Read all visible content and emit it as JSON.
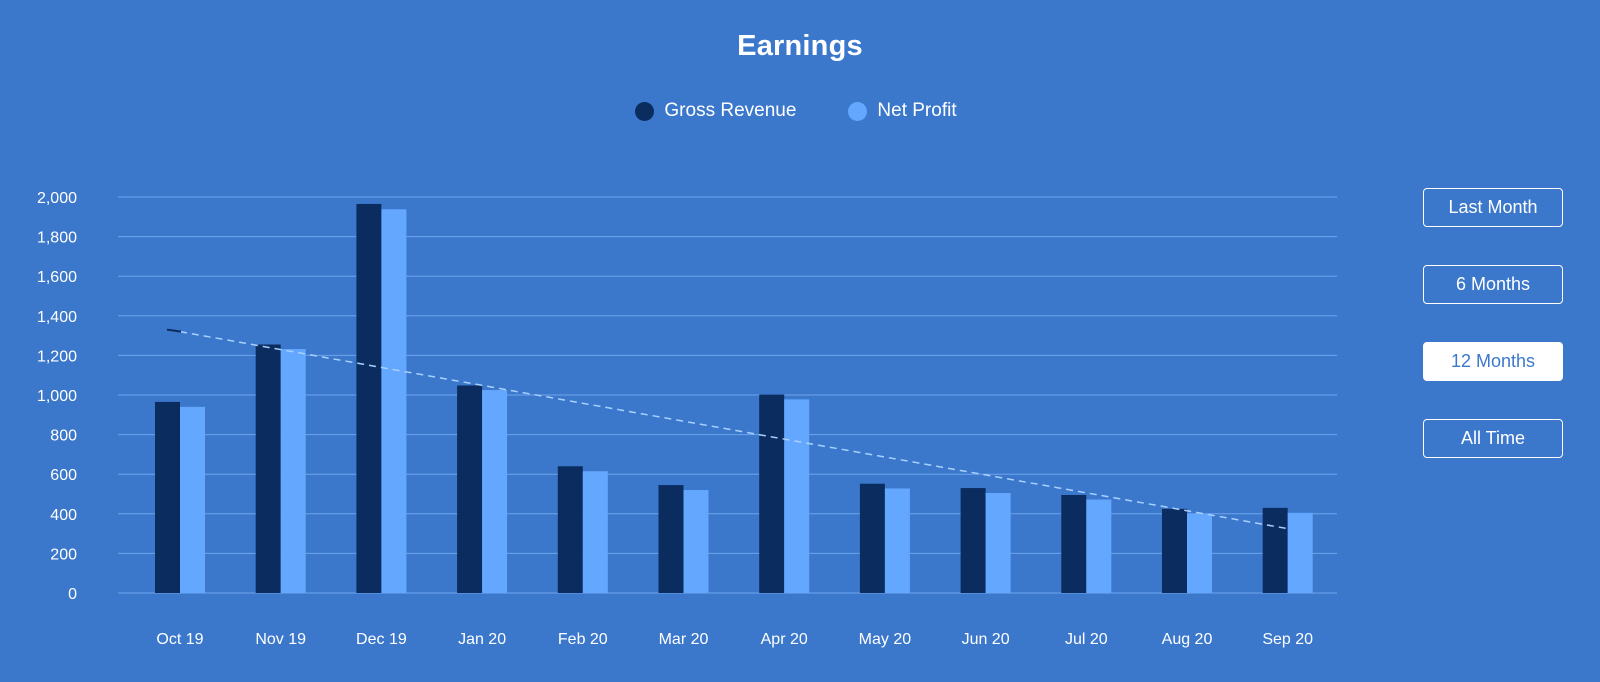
{
  "chart_data": {
    "type": "bar",
    "title": "Earnings",
    "categories": [
      "Oct 19",
      "Nov 19",
      "Dec 19",
      "Jan 20",
      "Feb 20",
      "Mar 20",
      "Apr 20",
      "May 20",
      "Jun 20",
      "Jul 20",
      "Aug 20",
      "Sep 20"
    ],
    "series": [
      {
        "name": "Gross Revenue",
        "color": "#0b2c5e",
        "values": [
          965,
          1255,
          1965,
          1048,
          640,
          545,
          1002,
          552,
          530,
          495,
          425,
          430
        ]
      },
      {
        "name": "Net Profit",
        "color": "#64a7ff",
        "values": [
          940,
          1232,
          1938,
          1025,
          615,
          520,
          978,
          528,
          505,
          472,
          402,
          405
        ]
      }
    ],
    "trendline": {
      "style": "dashed",
      "start": {
        "category": "Oct 19",
        "value": 1320
      },
      "end": {
        "category": "Sep 20",
        "value": 325
      }
    },
    "ylim": [
      0,
      2000
    ],
    "yticks": [
      0,
      200,
      400,
      600,
      800,
      1000,
      1200,
      1400,
      1600,
      1800,
      2000
    ],
    "ytick_labels": [
      "0",
      "200",
      "400",
      "600",
      "800",
      "1,000",
      "1,200",
      "1,400",
      "1,600",
      "1,800",
      "2,000"
    ],
    "grid": true,
    "legend_position": "top-center",
    "xlabel": "",
    "ylabel": ""
  },
  "range_buttons": [
    {
      "label": "Last Month",
      "active": false
    },
    {
      "label": "6 Months",
      "active": false
    },
    {
      "label": "12 Months",
      "active": true
    },
    {
      "label": "All Time",
      "active": false
    }
  ],
  "colors": {
    "background": "#3b78cc",
    "gridline": "#6ea3ec",
    "text": "#ffffff"
  }
}
